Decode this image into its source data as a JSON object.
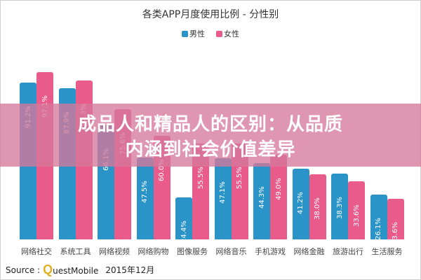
{
  "header": {
    "title": "各类APP月度使用比例 - 分性别",
    "legend": [
      {
        "label": "男性",
        "color": "#2a93c8"
      },
      {
        "label": "女性",
        "color": "#e95b8a"
      }
    ]
  },
  "overlay": {
    "line1": "成品人和精品人的区别：从品质",
    "line2": "内涵到社会价值差异"
  },
  "footer": {
    "source_label": "Source :",
    "logo_letter": "Q",
    "logo_rest": "uestMobile",
    "date": "2015年12月"
  },
  "chart_data": {
    "type": "bar",
    "title": "各类APP月度使用比例 - 分性别",
    "xlabel": "",
    "ylabel": "",
    "ylim": [
      0,
      100
    ],
    "grid": false,
    "legend_position": "top",
    "categories": [
      "网络社交",
      "系统工具",
      "网络视频",
      "网络购物",
      "图像服务",
      "网络音乐",
      "手机游戏",
      "网络金融",
      "旅游出行",
      "生活服务"
    ],
    "series": [
      {
        "name": "男性",
        "color": "#2a93c8",
        "values": [
          91.2,
          87.9,
          66.1,
          47.5,
          24.4,
          47.1,
          44.3,
          41.2,
          38.3,
          26.1
        ],
        "labels": [
          "91.2%",
          "87.9%",
          "66.1%",
          "47.5%",
          "24.4%",
          "47.1%",
          "44.3%",
          "41.2%",
          "38.3%",
          "26.1%"
        ]
      },
      {
        "name": "女性",
        "color": "#e95b8a",
        "values": [
          97.1,
          92.3,
          75.6,
          60.0,
          55.5,
          55.5,
          49.0,
          38.0,
          33.6,
          23.6
        ],
        "labels": [
          "97.1%",
          "92.3%",
          "75.6%",
          "60.0%",
          "55.5%",
          "55.5%",
          "49.0%",
          "38.0%",
          "33.6%",
          "23.6%"
        ]
      }
    ]
  }
}
